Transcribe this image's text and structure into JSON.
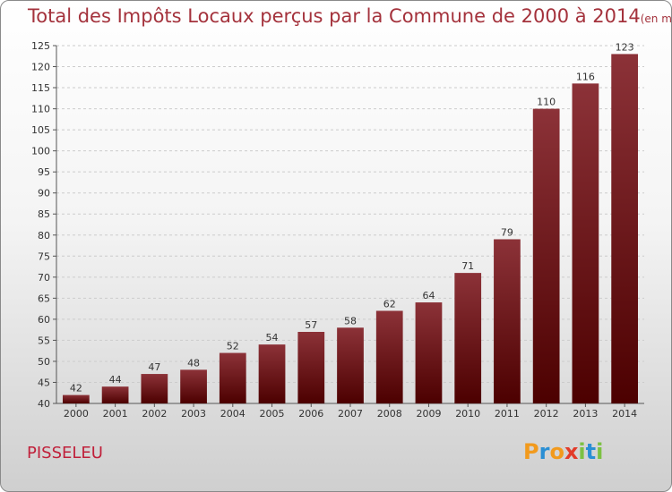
{
  "title": "Total des Impôts Locaux perçus par la Commune de 2000 à 2014",
  "unit": "(en milliers d'€)",
  "commune": "PISSELEU",
  "logo": {
    "letters": [
      "P",
      "r",
      "o",
      "x",
      "i",
      "t",
      "i"
    ],
    "colors": [
      "#f29a1d",
      "#2a8fd4",
      "#f29a1d",
      "#e23c2a",
      "#7cc142",
      "#2a8fd4",
      "#7cc142"
    ]
  },
  "colors": {
    "bar_top": "#8c3238",
    "bar_bottom": "#4c0000",
    "title": "#a4323c",
    "commune": "#c0203a"
  },
  "chart_data": {
    "type": "bar",
    "title": "Total des Impôts Locaux perçus par la Commune de 2000 à 2014",
    "categories": [
      "2000",
      "2001",
      "2002",
      "2003",
      "2004",
      "2005",
      "2006",
      "2007",
      "2008",
      "2009",
      "2010",
      "2011",
      "2012",
      "2013",
      "2014"
    ],
    "values": [
      42,
      44,
      47,
      48,
      52,
      54,
      57,
      58,
      62,
      64,
      71,
      79,
      110,
      116,
      123
    ],
    "ylim": [
      40,
      125
    ],
    "yticks": [
      40,
      45,
      50,
      55,
      60,
      65,
      70,
      75,
      80,
      85,
      90,
      95,
      100,
      105,
      110,
      115,
      120,
      125
    ],
    "grid": true,
    "legend": "none"
  }
}
